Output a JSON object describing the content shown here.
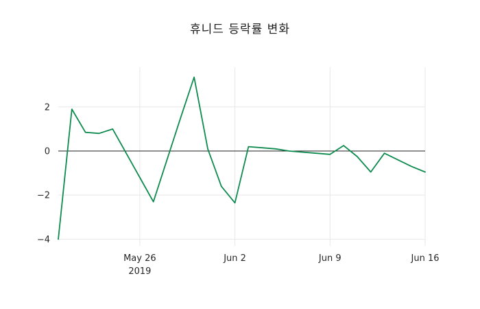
{
  "title": "휴니드 등락률 변화",
  "chart_data": {
    "type": "line",
    "title": "휴니드 등락률 변화",
    "series_name": "등락률",
    "line_color": "#0d8a4e",
    "zero_line_color": "#000000",
    "grid_color": "#e7e7e7",
    "text_color": "#262626",
    "background_color": "#ffffff",
    "grid": true,
    "legend": "none",
    "ylim": [
      -4.3,
      3.8
    ],
    "y_ticks": [
      {
        "value": 2,
        "label": "2"
      },
      {
        "value": 0,
        "label": "0"
      },
      {
        "value": -2,
        "label": "−2"
      },
      {
        "value": -4,
        "label": "−4"
      }
    ],
    "x_ticks": [
      {
        "date": "2019-05-26",
        "label": "May 26",
        "sublabel": "2019"
      },
      {
        "date": "2019-06-02",
        "label": "Jun 2",
        "sublabel": ""
      },
      {
        "date": "2019-06-09",
        "label": "Jun 9",
        "sublabel": ""
      },
      {
        "date": "2019-06-16",
        "label": "Jun 16",
        "sublabel": ""
      }
    ],
    "x": [
      "2019-05-20",
      "2019-05-21",
      "2019-05-22",
      "2019-05-23",
      "2019-05-24",
      "2019-05-25",
      "2019-05-26",
      "2019-05-27",
      "2019-05-28",
      "2019-05-29",
      "2019-05-30",
      "2019-05-31",
      "2019-06-01",
      "2019-06-02",
      "2019-06-03",
      "2019-06-04",
      "2019-06-05",
      "2019-06-06",
      "2019-06-07",
      "2019-06-08",
      "2019-06-09",
      "2019-06-10",
      "2019-06-11",
      "2019-06-12",
      "2019-06-13",
      "2019-06-14",
      "2019-06-15",
      "2019-06-16"
    ],
    "values": [
      -4.0,
      1.9,
      0.85,
      0.8,
      1.0,
      -0.1,
      -1.2,
      -2.3,
      -0.4,
      1.5,
      3.35,
      0.1,
      -1.6,
      -2.35,
      0.2,
      0.15,
      0.1,
      0.0,
      -0.05,
      -0.1,
      -0.15,
      0.25,
      -0.25,
      -0.95,
      -0.1,
      -0.4,
      -0.7,
      -0.95
    ]
  }
}
